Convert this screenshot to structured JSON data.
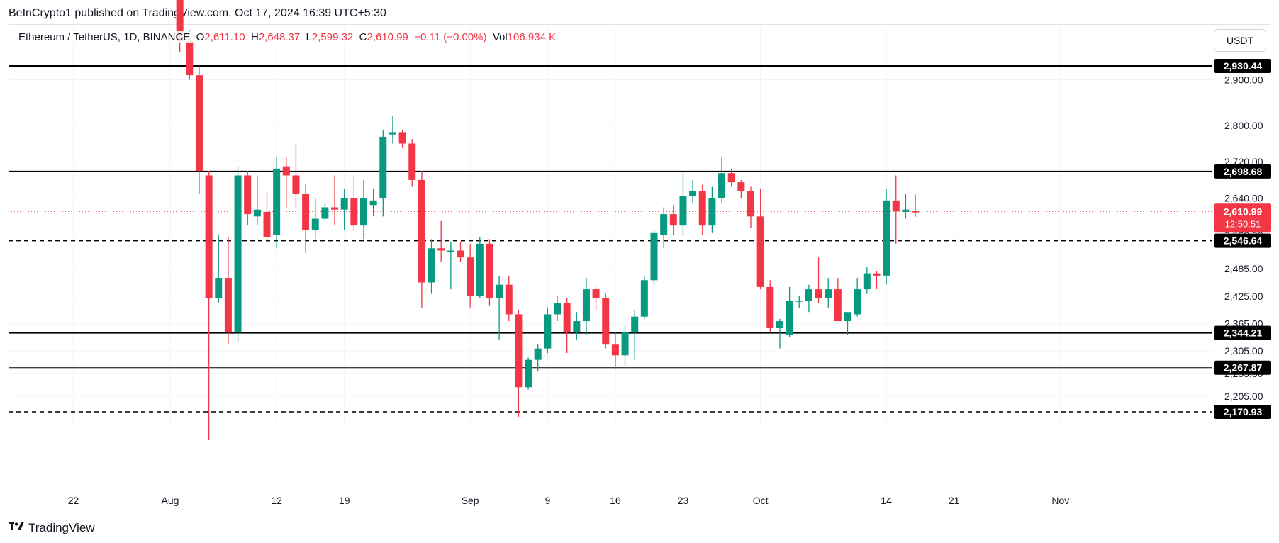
{
  "publisher": "BeInCrypto1 published on TradingView.com, Oct 17, 2024 16:39 UTC+5:30",
  "legend": {
    "symbol": "Ethereum / TetherUS, 1D, BINANCE",
    "o_label": "O",
    "o": "2,611.10",
    "h_label": "H",
    "h": "2,648.37",
    "l_label": "L",
    "l": "2,599.32",
    "c_label": "C",
    "c": "2,610.99",
    "change": "−0.11 (−0.00%)",
    "vol_label": "Vol",
    "vol": "106.934 K"
  },
  "currency_button": "USDT",
  "brand": "TradingView",
  "colors": {
    "up": "#089981",
    "down": "#f23645",
    "grid": "#f0f3fa",
    "axis_text": "#131722"
  },
  "chart_data": {
    "type": "candlestick",
    "x_tick_labels": [
      {
        "label": "22",
        "day": -10
      },
      {
        "label": "Aug",
        "day": 0
      },
      {
        "label": "12",
        "day": 11
      },
      {
        "label": "19",
        "day": 18
      },
      {
        "label": "Sep",
        "day": 31
      },
      {
        "label": "9",
        "day": 39
      },
      {
        "label": "16",
        "day": 46
      },
      {
        "label": "23",
        "day": 53
      },
      {
        "label": "Oct",
        "day": 61
      },
      {
        "label": "14",
        "day": 74
      },
      {
        "label": "21",
        "day": 81
      },
      {
        "label": "Nov",
        "day": 92
      }
    ],
    "y_tick_labels": [
      "2,900.00",
      "2,800.00",
      "2,720.00",
      "2,640.00",
      "2,560.00",
      "2,485.00",
      "2,425.00",
      "2,365.00",
      "2,305.00",
      "2,255.00",
      "2,205.00",
      "2,170.00"
    ],
    "y_ticks": [
      2900,
      2800,
      2720,
      2640,
      2560,
      2485,
      2425,
      2365,
      2305,
      2255,
      2205,
      2170
    ],
    "candles": [
      {
        "day": 1,
        "o": 3200,
        "h": 3230,
        "l": 2960,
        "c": 2985
      },
      {
        "day": 2,
        "o": 2985,
        "h": 3010,
        "l": 2900,
        "c": 2910
      },
      {
        "day": 3,
        "o": 2910,
        "h": 2930,
        "l": 2650,
        "c": 2700
      },
      {
        "day": 4,
        "o": 2690,
        "h": 2700,
        "l": 2110,
        "c": 2420
      },
      {
        "day": 5,
        "o": 2420,
        "h": 2560,
        "l": 2410,
        "c": 2465
      },
      {
        "day": 6,
        "o": 2465,
        "h": 2555,
        "l": 2320,
        "c": 2345
      },
      {
        "day": 7,
        "o": 2345,
        "h": 2710,
        "l": 2325,
        "c": 2690
      },
      {
        "day": 8,
        "o": 2690,
        "h": 2700,
        "l": 2580,
        "c": 2605
      },
      {
        "day": 9,
        "o": 2600,
        "h": 2690,
        "l": 2580,
        "c": 2615
      },
      {
        "day": 10,
        "o": 2610,
        "h": 2655,
        "l": 2540,
        "c": 2555
      },
      {
        "day": 11,
        "o": 2560,
        "h": 2730,
        "l": 2530,
        "c": 2705
      },
      {
        "day": 12,
        "o": 2710,
        "h": 2730,
        "l": 2620,
        "c": 2690
      },
      {
        "day": 13,
        "o": 2690,
        "h": 2760,
        "l": 2620,
        "c": 2650
      },
      {
        "day": 14,
        "o": 2650,
        "h": 2670,
        "l": 2520,
        "c": 2570
      },
      {
        "day": 15,
        "o": 2570,
        "h": 2640,
        "l": 2550,
        "c": 2595
      },
      {
        "day": 16,
        "o": 2595,
        "h": 2630,
        "l": 2590,
        "c": 2620
      },
      {
        "day": 17,
        "o": 2620,
        "h": 2690,
        "l": 2580,
        "c": 2615
      },
      {
        "day": 18,
        "o": 2615,
        "h": 2660,
        "l": 2570,
        "c": 2640
      },
      {
        "day": 19,
        "o": 2640,
        "h": 2690,
        "l": 2570,
        "c": 2580
      },
      {
        "day": 20,
        "o": 2580,
        "h": 2680,
        "l": 2550,
        "c": 2640
      },
      {
        "day": 21,
        "o": 2625,
        "h": 2660,
        "l": 2600,
        "c": 2635
      },
      {
        "day": 22,
        "o": 2640,
        "h": 2790,
        "l": 2600,
        "c": 2775
      },
      {
        "day": 23,
        "o": 2780,
        "h": 2820,
        "l": 2760,
        "c": 2785
      },
      {
        "day": 24,
        "o": 2785,
        "h": 2790,
        "l": 2750,
        "c": 2760
      },
      {
        "day": 25,
        "o": 2760,
        "h": 2770,
        "l": 2665,
        "c": 2680
      },
      {
        "day": 26,
        "o": 2680,
        "h": 2700,
        "l": 2400,
        "c": 2455
      },
      {
        "day": 27,
        "o": 2455,
        "h": 2550,
        "l": 2430,
        "c": 2530
      },
      {
        "day": 28,
        "o": 2530,
        "h": 2590,
        "l": 2500,
        "c": 2525
      },
      {
        "day": 29,
        "o": 2525,
        "h": 2545,
        "l": 2440,
        "c": 2525
      },
      {
        "day": 30,
        "o": 2525,
        "h": 2545,
        "l": 2500,
        "c": 2510
      },
      {
        "day": 31,
        "o": 2510,
        "h": 2540,
        "l": 2400,
        "c": 2425
      },
      {
        "day": 32,
        "o": 2425,
        "h": 2555,
        "l": 2420,
        "c": 2540
      },
      {
        "day": 33,
        "o": 2540,
        "h": 2550,
        "l": 2405,
        "c": 2420
      },
      {
        "day": 34,
        "o": 2420,
        "h": 2470,
        "l": 2330,
        "c": 2450
      },
      {
        "day": 35,
        "o": 2450,
        "h": 2470,
        "l": 2370,
        "c": 2385
      },
      {
        "day": 36,
        "o": 2385,
        "h": 2395,
        "l": 2160,
        "c": 2225
      },
      {
        "day": 37,
        "o": 2225,
        "h": 2290,
        "l": 2220,
        "c": 2285
      },
      {
        "day": 38,
        "o": 2285,
        "h": 2320,
        "l": 2260,
        "c": 2310
      },
      {
        "day": 39,
        "o": 2310,
        "h": 2400,
        "l": 2300,
        "c": 2385
      },
      {
        "day": 40,
        "o": 2385,
        "h": 2425,
        "l": 2370,
        "c": 2410
      },
      {
        "day": 41,
        "o": 2410,
        "h": 2420,
        "l": 2300,
        "c": 2345
      },
      {
        "day": 42,
        "o": 2345,
        "h": 2390,
        "l": 2330,
        "c": 2370
      },
      {
        "day": 43,
        "o": 2370,
        "h": 2465,
        "l": 2340,
        "c": 2440
      },
      {
        "day": 44,
        "o": 2440,
        "h": 2445,
        "l": 2395,
        "c": 2420
      },
      {
        "day": 45,
        "o": 2420,
        "h": 2430,
        "l": 2310,
        "c": 2320
      },
      {
        "day": 46,
        "o": 2320,
        "h": 2345,
        "l": 2265,
        "c": 2295
      },
      {
        "day": 47,
        "o": 2295,
        "h": 2360,
        "l": 2270,
        "c": 2345
      },
      {
        "day": 48,
        "o": 2345,
        "h": 2395,
        "l": 2285,
        "c": 2380
      },
      {
        "day": 49,
        "o": 2380,
        "h": 2470,
        "l": 2375,
        "c": 2460
      },
      {
        "day": 50,
        "o": 2460,
        "h": 2570,
        "l": 2450,
        "c": 2565
      },
      {
        "day": 51,
        "o": 2560,
        "h": 2620,
        "l": 2530,
        "c": 2605
      },
      {
        "day": 52,
        "o": 2605,
        "h": 2625,
        "l": 2560,
        "c": 2580
      },
      {
        "day": 53,
        "o": 2580,
        "h": 2700,
        "l": 2560,
        "c": 2645
      },
      {
        "day": 54,
        "o": 2645,
        "h": 2680,
        "l": 2630,
        "c": 2655
      },
      {
        "day": 55,
        "o": 2655,
        "h": 2670,
        "l": 2560,
        "c": 2580
      },
      {
        "day": 56,
        "o": 2580,
        "h": 2665,
        "l": 2565,
        "c": 2640
      },
      {
        "day": 57,
        "o": 2640,
        "h": 2730,
        "l": 2630,
        "c": 2695
      },
      {
        "day": 58,
        "o": 2695,
        "h": 2705,
        "l": 2665,
        "c": 2675
      },
      {
        "day": 59,
        "o": 2675,
        "h": 2680,
        "l": 2640,
        "c": 2655
      },
      {
        "day": 60,
        "o": 2655,
        "h": 2665,
        "l": 2575,
        "c": 2600
      },
      {
        "day": 61,
        "o": 2600,
        "h": 2660,
        "l": 2440,
        "c": 2445
      },
      {
        "day": 62,
        "o": 2445,
        "h": 2460,
        "l": 2345,
        "c": 2355
      },
      {
        "day": 63,
        "o": 2355,
        "h": 2375,
        "l": 2310,
        "c": 2370
      },
      {
        "day": 64,
        "o": 2340,
        "h": 2445,
        "l": 2335,
        "c": 2415
      },
      {
        "day": 65,
        "o": 2415,
        "h": 2425,
        "l": 2400,
        "c": 2415
      },
      {
        "day": 66,
        "o": 2415,
        "h": 2450,
        "l": 2390,
        "c": 2440
      },
      {
        "day": 67,
        "o": 2440,
        "h": 2510,
        "l": 2410,
        "c": 2420
      },
      {
        "day": 68,
        "o": 2420,
        "h": 2465,
        "l": 2400,
        "c": 2440
      },
      {
        "day": 69,
        "o": 2440,
        "h": 2465,
        "l": 2370,
        "c": 2370
      },
      {
        "day": 70,
        "o": 2370,
        "h": 2390,
        "l": 2340,
        "c": 2390
      },
      {
        "day": 71,
        "o": 2385,
        "h": 2465,
        "l": 2380,
        "c": 2440
      },
      {
        "day": 72,
        "o": 2440,
        "h": 2490,
        "l": 2430,
        "c": 2475
      },
      {
        "day": 73,
        "o": 2475,
        "h": 2480,
        "l": 2440,
        "c": 2470
      },
      {
        "day": 74,
        "o": 2470,
        "h": 2660,
        "l": 2450,
        "c": 2635
      },
      {
        "day": 75,
        "o": 2635,
        "h": 2690,
        "l": 2540,
        "c": 2611
      },
      {
        "day": 76,
        "o": 2610,
        "h": 2650,
        "l": 2595,
        "c": 2615
      },
      {
        "day": 77,
        "o": 2611.1,
        "h": 2648.37,
        "l": 2599.32,
        "c": 2610.99
      }
    ],
    "horizontal_levels": [
      {
        "value": 2930.44,
        "label": "2,930.44",
        "style": "solid"
      },
      {
        "value": 2698.68,
        "label": "2,698.68",
        "style": "solid"
      },
      {
        "value": 2546.64,
        "label": "2,546.64",
        "style": "dashed"
      },
      {
        "value": 2344.21,
        "label": "2,344.21",
        "style": "solid"
      },
      {
        "value": 2267.87,
        "label": "2,267.87",
        "style": "thin"
      },
      {
        "value": 2170.93,
        "label": "2,170.93",
        "style": "dashed"
      }
    ],
    "current_price": {
      "value": 2610.99,
      "label": "2,610.99",
      "countdown": "12:50:51"
    }
  }
}
